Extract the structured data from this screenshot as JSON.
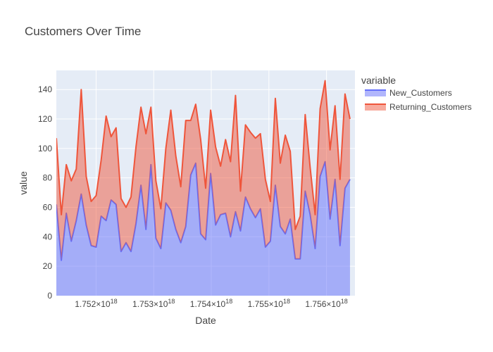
{
  "chart_data": {
    "type": "area",
    "title": "Customers Over Time",
    "xlabel": "Date",
    "ylabel": "value",
    "x_start": 1.75131e+18,
    "x_step": 86400000000000.0,
    "xlim": [
      1.75131e+18,
      1.756494e+18
    ],
    "ylim": [
      0,
      153
    ],
    "x_ticks": [
      {
        "value": 1.752e+18,
        "mantissa": "1.752",
        "exp": "18"
      },
      {
        "value": 1.753e+18,
        "mantissa": "1.753",
        "exp": "18"
      },
      {
        "value": 1.754e+18,
        "mantissa": "1.754",
        "exp": "18"
      },
      {
        "value": 1.755e+18,
        "mantissa": "1.755",
        "exp": "18"
      },
      {
        "value": 1.756e+18,
        "mantissa": "1.756",
        "exp": "18"
      }
    ],
    "y_ticks": [
      0,
      20,
      40,
      60,
      80,
      100,
      120,
      140
    ],
    "stacked": true,
    "grid": true,
    "legend_title": "variable",
    "legend_position": "right",
    "series": [
      {
        "name": "New_Customers",
        "color": "#636efa",
        "fill": "rgba(99,110,250,0.5)",
        "values": [
          62,
          24,
          56,
          37,
          51,
          69,
          48,
          34,
          33,
          54,
          51,
          65,
          62,
          30,
          36,
          30,
          49,
          75,
          45,
          89,
          39,
          32,
          63,
          58,
          45,
          36,
          47,
          82,
          90,
          42,
          38,
          83,
          48,
          55,
          56,
          40,
          57,
          44,
          67,
          59,
          53,
          59,
          33,
          37,
          75,
          47,
          42,
          52,
          25,
          25,
          71,
          55,
          32,
          81,
          91,
          52,
          79,
          34,
          73,
          79
        ]
      },
      {
        "name": "Returning_Customers",
        "color": "#ef553b",
        "fill": "rgba(239,85,59,0.5)",
        "values": [
          45,
          31,
          33,
          41,
          35,
          71,
          33,
          30,
          35,
          38,
          71,
          43,
          52,
          36,
          24,
          37,
          52,
          53,
          65,
          39,
          39,
          27,
          37,
          68,
          50,
          38,
          72,
          37,
          40,
          64,
          35,
          43,
          53,
          33,
          50,
          51,
          79,
          27,
          49,
          52,
          54,
          51,
          46,
          27,
          59,
          43,
          67,
          46,
          20,
          29,
          52,
          32,
          23,
          46,
          55,
          47,
          50,
          45,
          64,
          41
        ]
      }
    ]
  }
}
